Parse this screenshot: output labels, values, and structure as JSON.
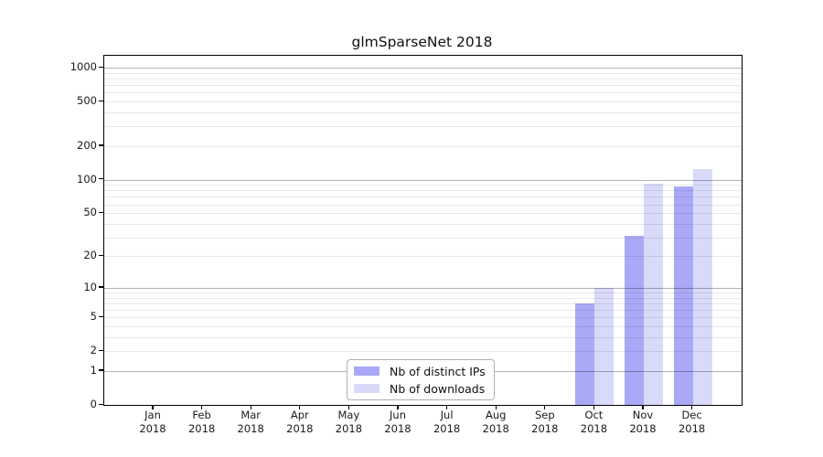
{
  "chart_data": {
    "type": "bar",
    "title": "glmSparseNet 2018",
    "categories": [
      "Jan",
      "Feb",
      "Mar",
      "Apr",
      "May",
      "Jun",
      "Jul",
      "Aug",
      "Sep",
      "Oct",
      "Nov",
      "Dec"
    ],
    "category_year": "2018",
    "series": [
      {
        "name": "Nb of distinct IPs",
        "color": "#a9a9f7",
        "values": [
          0,
          0,
          0,
          0,
          0,
          0,
          0,
          0,
          0,
          7,
          31,
          87
        ]
      },
      {
        "name": "Nb of downloads",
        "color": "#d9d9f9",
        "values": [
          0,
          0,
          0,
          0,
          0,
          0,
          0,
          0,
          0,
          10,
          92,
          125
        ]
      }
    ],
    "y_ticks": [
      0,
      1,
      2,
      5,
      10,
      20,
      50,
      100,
      200,
      500,
      1000
    ],
    "y_major_gridlines": [
      1,
      10,
      100,
      1000
    ],
    "y_scale": "log1p",
    "ylim": [
      0,
      1280
    ],
    "grid": "major+minor",
    "legend_position": "bottom-center",
    "axis_color": "#000000",
    "text_color": "#1a1a1a"
  }
}
